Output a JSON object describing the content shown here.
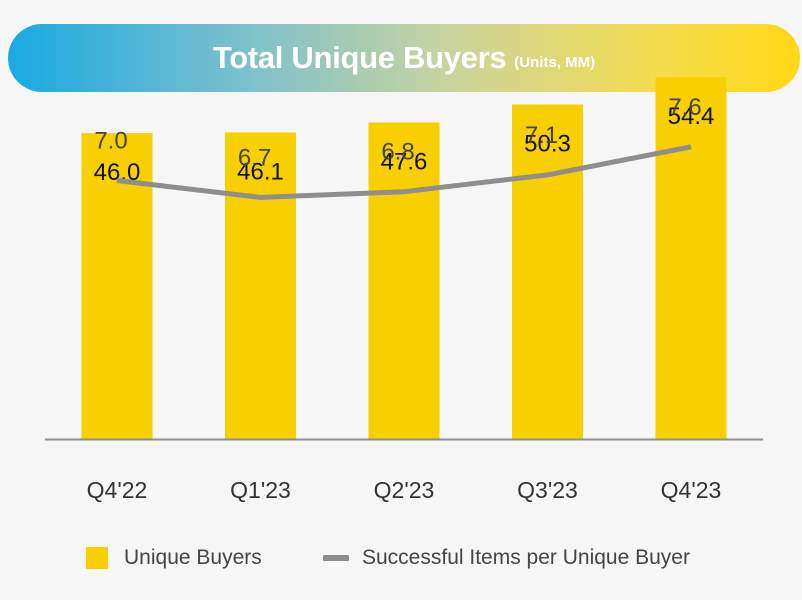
{
  "header": {
    "title": "Total Unique Buyers",
    "subtitle": "(Units, MM)"
  },
  "colors": {
    "bar": "#f8cf00",
    "line": "#8e8e8e",
    "axis": "#8e8e8e",
    "label_text": "#111111",
    "line_label_text": "#444444"
  },
  "chart_data": {
    "type": "bar",
    "title": "Total Unique Buyers (Units, MM)",
    "categories": [
      "Q4'22",
      "Q1'23",
      "Q2'23",
      "Q3'23",
      "Q4'23"
    ],
    "series": [
      {
        "name": "Unique Buyers",
        "type": "bar",
        "values": [
          46.0,
          46.1,
          47.6,
          50.3,
          54.4
        ],
        "labels": [
          "46.0",
          "46.1",
          "47.6",
          "50.3",
          "54.4"
        ]
      },
      {
        "name": "Successful Items per Unique Buyer",
        "type": "line",
        "values": [
          7.0,
          6.7,
          6.8,
          7.1,
          7.6
        ],
        "labels": [
          "7.0",
          "6.7",
          "6.8",
          "7.1",
          "7.6"
        ]
      }
    ],
    "xlabel": "",
    "ylabel": "",
    "bar_ylim": [
      0,
      60
    ],
    "line_ylim": [
      2.4,
      9.5
    ],
    "legend_position": "bottom"
  },
  "legend": {
    "bar_label": "Unique Buyers",
    "line_label": "Successful Items per Unique Buyer"
  }
}
